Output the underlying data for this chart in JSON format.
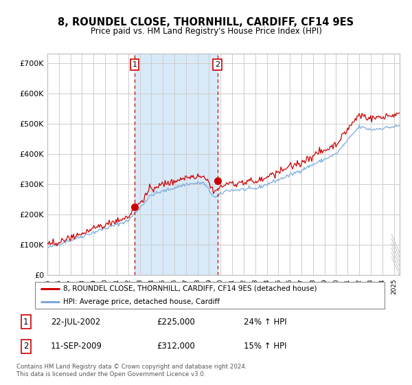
{
  "title": "8, ROUNDEL CLOSE, THORNHILL, CARDIFF, CF14 9ES",
  "subtitle": "Price paid vs. HM Land Registry's House Price Index (HPI)",
  "legend_line1": "8, ROUNDEL CLOSE, THORNHILL, CARDIFF, CF14 9ES (detached house)",
  "legend_line2": "HPI: Average price, detached house, Cardiff",
  "transaction1_date": "22-JUL-2002",
  "transaction1_price": 225000,
  "transaction1_price_str": "£225,000",
  "transaction1_pct": "24% ↑ HPI",
  "transaction2_date": "11-SEP-2009",
  "transaction2_price": 312000,
  "transaction2_price_str": "£312,000",
  "transaction2_pct": "15% ↑ HPI",
  "footnote_line1": "Contains HM Land Registry data © Crown copyright and database right 2024.",
  "footnote_line2": "This data is licensed under the Open Government Licence v3.0.",
  "red_line_color": "#cc0000",
  "blue_line_color": "#7aaadd",
  "shading_color": "#d8eaf8",
  "grid_color": "#cccccc",
  "background_color": "#ffffff",
  "ylim": [
    0,
    730000
  ],
  "yticks": [
    0,
    100000,
    200000,
    300000,
    400000,
    500000,
    600000,
    700000
  ],
  "ytick_labels": [
    "£0",
    "£100K",
    "£200K",
    "£300K",
    "£400K",
    "£500K",
    "£600K",
    "£700K"
  ],
  "transaction1_year": 2002.55,
  "transaction2_year": 2009.72
}
